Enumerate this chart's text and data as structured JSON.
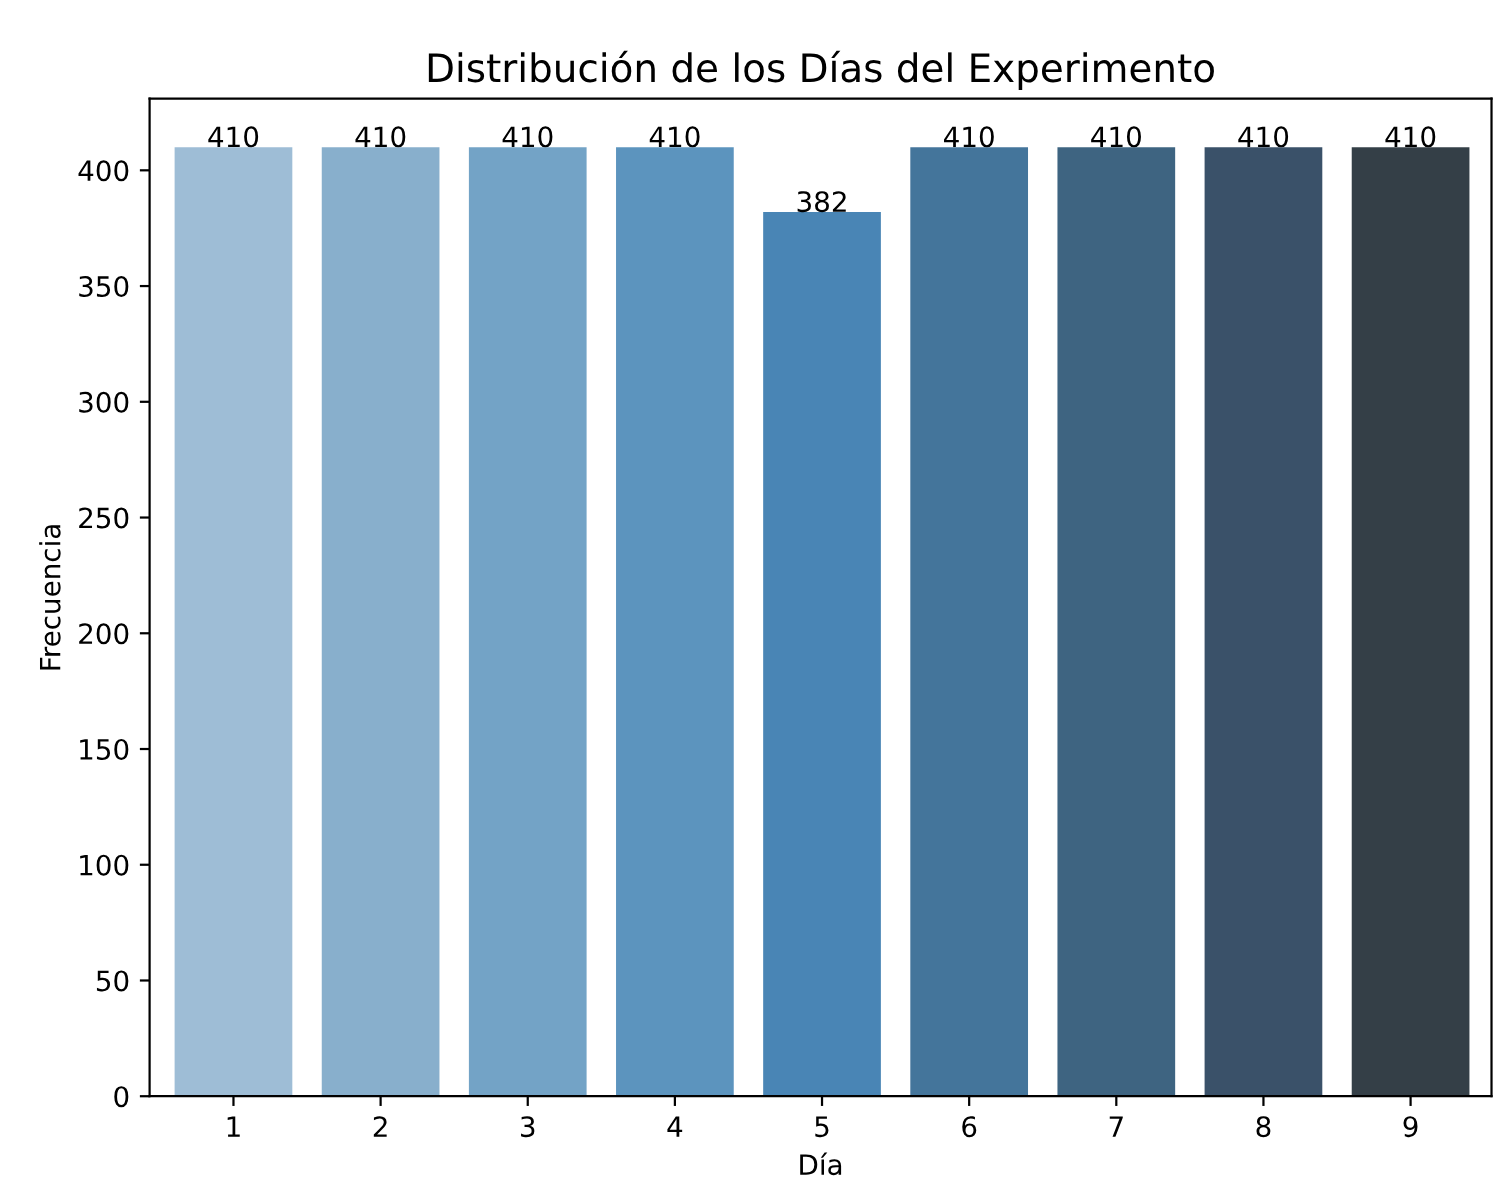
{
  "chart_data": {
    "type": "bar",
    "title": "Distribución de los Días del Experimento",
    "xlabel": "Día",
    "ylabel": "Frecuencia",
    "categories": [
      "1",
      "2",
      "3",
      "4",
      "5",
      "6",
      "7",
      "8",
      "9"
    ],
    "values": [
      410,
      410,
      410,
      410,
      382,
      410,
      410,
      410,
      410
    ],
    "colors": [
      "#9ebdd6",
      "#88afcc",
      "#73a3c6",
      "#5c94be",
      "#4985b5",
      "#44759b",
      "#3e6481",
      "#3a5169",
      "#343f47"
    ],
    "ylim": [
      0,
      431
    ],
    "yticks": [
      0,
      50,
      100,
      150,
      200,
      250,
      300,
      350,
      400
    ],
    "data_labels": true
  }
}
